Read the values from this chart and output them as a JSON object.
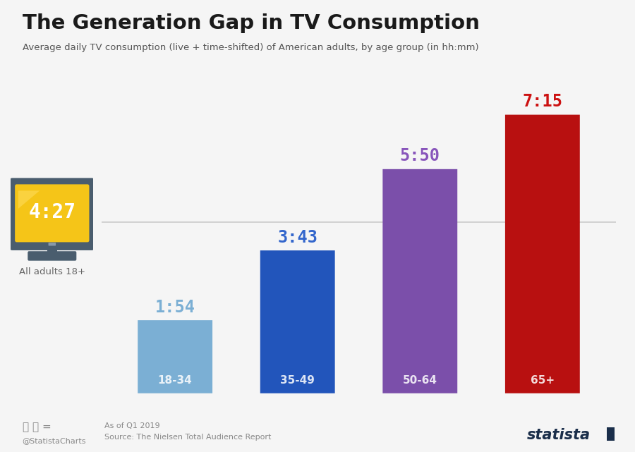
{
  "title": "The Generation Gap in TV Consumption",
  "subtitle": "Average daily TV consumption (live + time-shifted) of American adults, by age group (in hh:mm)",
  "categories": [
    "18-34",
    "35-49",
    "50-64",
    "65+"
  ],
  "values_minutes": [
    114,
    223,
    350,
    435
  ],
  "values_labels": [
    "1:54",
    "3:43",
    "5:50",
    "7:15"
  ],
  "bar_colors": [
    "#7BAFD4",
    "#2255BB",
    "#7B4FAA",
    "#B81010"
  ],
  "label_colors": [
    "#7BAFD4",
    "#3366CC",
    "#8855BB",
    "#CC1111"
  ],
  "all_adults_label": "4:27",
  "all_adults_minutes": 267,
  "background_color": "#f5f5f5",
  "title_color": "#1a1a1a",
  "subtitle_color": "#555555",
  "footer_left1": "As of Q1 2019",
  "footer_left2": "Source: The Nielsen Total Audience Report",
  "footer_handle": "@StatistaCharts",
  "ylim_max": 480,
  "bar_width": 0.58,
  "tv_color": "#4a5d6e",
  "tv_screen_color": "#F5C518",
  "tv_screen_highlight": "#FFDD55"
}
